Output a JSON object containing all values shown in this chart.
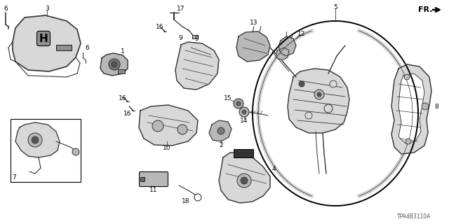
{
  "bg_color": "#ffffff",
  "diagram_code": "TPA4B3110A",
  "fr_label": "FR.",
  "line_color": "#333333",
  "label_color": "#000000",
  "parts_gray": "#b8b8b8",
  "parts_light": "#d8d8d8",
  "parts_dark": "#888888"
}
